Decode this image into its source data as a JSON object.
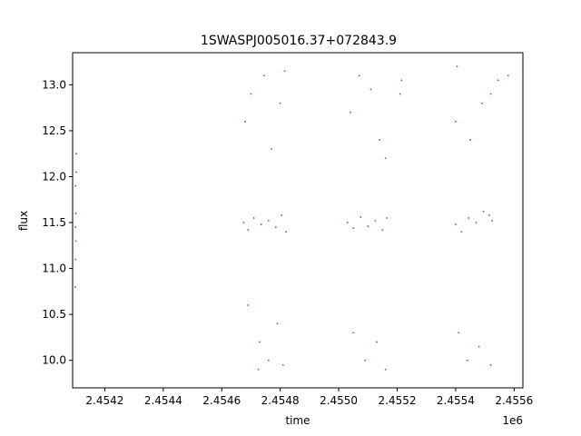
{
  "chart_data": {
    "type": "scatter",
    "title": "1SWASPJ005016.37+072843.9",
    "xlabel": "time",
    "ylabel": "flux",
    "x_offset_label": "1e6",
    "xlim": [
      2454090,
      2455630
    ],
    "ylim": [
      9.7,
      13.35
    ],
    "grid": false,
    "legend": "none",
    "marker_color": "#1f77b4",
    "x_ticks": [
      2454200,
      2454400,
      2454600,
      2454800,
      2455000,
      2455200,
      2455400,
      2455600
    ],
    "x_tick_labels": [
      "2.4542",
      "2.4544",
      "2.4546",
      "2.4548",
      "2.4550",
      "2.4552",
      "2.4554",
      "2.4556"
    ],
    "y_ticks": [
      10.0,
      10.5,
      11.0,
      11.5,
      12.0,
      12.5,
      13.0
    ],
    "y_tick_labels": [
      "10.0",
      "10.5",
      "11.0",
      "11.5",
      "12.0",
      "12.5",
      "13.0"
    ],
    "series": [
      {
        "values": [
          [
            2454100,
            11.45
          ],
          [
            2454101,
            11.6
          ],
          [
            2454100,
            11.9
          ],
          [
            2454102,
            12.05
          ],
          [
            2454099,
            10.8
          ],
          [
            2454101,
            11.3
          ],
          [
            2454102,
            12.25
          ],
          [
            2454100,
            11.1
          ],
          [
            2454675,
            11.5
          ],
          [
            2454690,
            11.42
          ],
          [
            2454710,
            11.55
          ],
          [
            2454735,
            11.48
          ],
          [
            2454760,
            11.52
          ],
          [
            2454785,
            11.45
          ],
          [
            2454805,
            11.58
          ],
          [
            2454820,
            11.4
          ],
          [
            2454680,
            12.6
          ],
          [
            2454700,
            12.9
          ],
          [
            2454745,
            13.1
          ],
          [
            2454770,
            12.3
          ],
          [
            2454800,
            12.8
          ],
          [
            2454815,
            13.15
          ],
          [
            2454690,
            10.6
          ],
          [
            2454730,
            10.2
          ],
          [
            2454760,
            10.0
          ],
          [
            2454790,
            10.4
          ],
          [
            2454810,
            9.95
          ],
          [
            2454725,
            9.9
          ],
          [
            2455030,
            11.5
          ],
          [
            2455050,
            11.44
          ],
          [
            2455075,
            11.56
          ],
          [
            2455100,
            11.46
          ],
          [
            2455125,
            11.52
          ],
          [
            2455150,
            11.42
          ],
          [
            2455165,
            11.55
          ],
          [
            2455040,
            12.7
          ],
          [
            2455070,
            13.1
          ],
          [
            2455110,
            12.95
          ],
          [
            2455140,
            12.4
          ],
          [
            2455160,
            12.2
          ],
          [
            2455050,
            10.3
          ],
          [
            2455090,
            10.0
          ],
          [
            2455130,
            10.2
          ],
          [
            2455160,
            9.9
          ],
          [
            2455210,
            12.9
          ],
          [
            2455215,
            13.05
          ],
          [
            2455400,
            11.48
          ],
          [
            2455420,
            11.4
          ],
          [
            2455445,
            11.55
          ],
          [
            2455470,
            11.5
          ],
          [
            2455495,
            11.62
          ],
          [
            2455515,
            11.58
          ],
          [
            2455525,
            11.52
          ],
          [
            2455400,
            12.6
          ],
          [
            2455405,
            13.2
          ],
          [
            2455450,
            12.4
          ],
          [
            2455490,
            12.8
          ],
          [
            2455520,
            12.9
          ],
          [
            2455545,
            13.05
          ],
          [
            2455580,
            13.1
          ],
          [
            2455410,
            10.3
          ],
          [
            2455440,
            10.0
          ],
          [
            2455480,
            10.15
          ],
          [
            2455520,
            9.95
          ]
        ]
      }
    ]
  }
}
